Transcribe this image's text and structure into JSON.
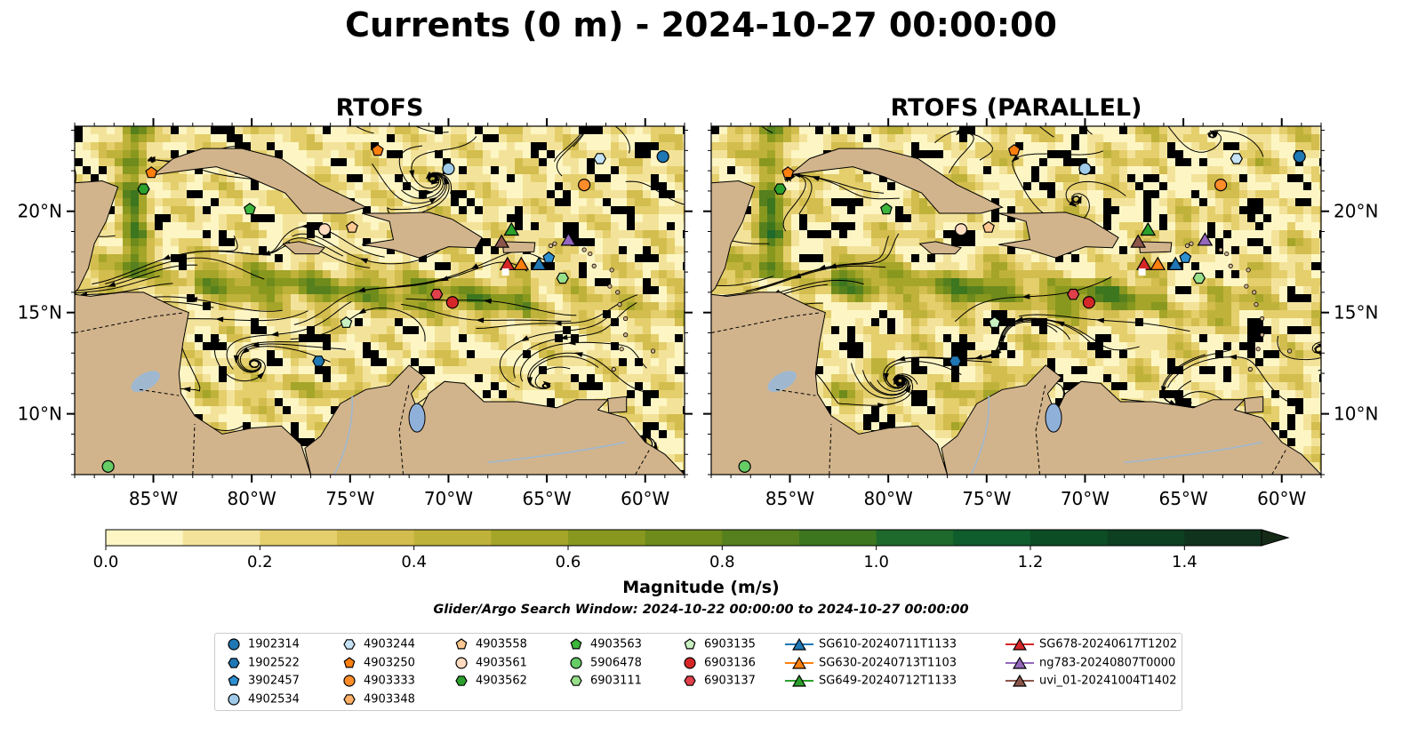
{
  "title": "Currents (0 m) - 2024-10-27 00:00:00",
  "panels": [
    {
      "title": "RTOFS"
    },
    {
      "title": "RTOFS (PARALLEL)"
    }
  ],
  "colors": {
    "land": "#d2b48c",
    "lake": "#8fb0d8",
    "river": "#9fb8d0",
    "streamline": "#000000"
  },
  "chart_data": {
    "type": "map",
    "lon_ticks": [
      "85°W",
      "80°W",
      "75°W",
      "70°W",
      "65°W",
      "60°W"
    ],
    "lat_ticks": [
      "20°N",
      "15°N",
      "10°N"
    ],
    "colorbar": {
      "label": "Magnitude (m/s)",
      "ticks": [
        "0.0",
        "0.2",
        "0.4",
        "0.6",
        "0.8",
        "1.0",
        "1.2",
        "1.4"
      ],
      "range": [
        0.0,
        1.5
      ],
      "extend": "max",
      "colors": [
        "#fdf6c4",
        "#f3e39a",
        "#e4cf6c",
        "#d3bd4e",
        "#bfb23a",
        "#a4a529",
        "#88981f",
        "#6e8b1c",
        "#55801d",
        "#3c761f",
        "#1e6a2c",
        "#0f5c2c",
        "#0c4d25",
        "#0d3f21",
        "#10331d",
        "#152a17"
      ]
    },
    "search_window": "Glider/Argo Search Window: 2024-10-22 00:00:00 to 2024-10-27 00:00:00",
    "legend": [
      {
        "name": "1902314",
        "marker": "circle",
        "color": "#1f77b4"
      },
      {
        "name": "1902522",
        "marker": "hexagon",
        "color": "#1f77b4"
      },
      {
        "name": "3902457",
        "marker": "pentagon",
        "color": "#2d8fd0"
      },
      {
        "name": "4902534",
        "marker": "circle",
        "color": "#9fcbe8"
      },
      {
        "name": "4903244",
        "marker": "hexagon",
        "color": "#c6e2f5"
      },
      {
        "name": "4903250",
        "marker": "pentagon",
        "color": "#ff7f0e"
      },
      {
        "name": "4903333",
        "marker": "circle",
        "color": "#ff8c2a"
      },
      {
        "name": "4903348",
        "marker": "hexagon",
        "color": "#ffb066"
      },
      {
        "name": "4903558",
        "marker": "pentagon",
        "color": "#ffc891"
      },
      {
        "name": "4903561",
        "marker": "circle",
        "color": "#ffdcc0"
      },
      {
        "name": "4903562",
        "marker": "hexagon",
        "color": "#2ca02c"
      },
      {
        "name": "4903563",
        "marker": "pentagon",
        "color": "#3cb63c"
      },
      {
        "name": "5906478",
        "marker": "circle",
        "color": "#66cc66"
      },
      {
        "name": "6903111",
        "marker": "hexagon",
        "color": "#98df8a"
      },
      {
        "name": "6903135",
        "marker": "pentagon",
        "color": "#c8f0c0"
      },
      {
        "name": "6903136",
        "marker": "circle",
        "color": "#d62728"
      },
      {
        "name": "6903137",
        "marker": "hexagon",
        "color": "#e0404a"
      },
      {
        "name": "SG610-20240711T1133",
        "marker": "triangle",
        "color": "#1f77b4"
      },
      {
        "name": "SG630-20240713T1103",
        "marker": "triangle",
        "color": "#ff7f0e"
      },
      {
        "name": "SG649-20240712T1133",
        "marker": "triangle",
        "color": "#2ca02c"
      },
      {
        "name": "SG678-20240617T1202",
        "marker": "triangle",
        "color": "#d62728"
      },
      {
        "name": "ng783-20240807T0000",
        "marker": "triangle",
        "color": "#9467bd"
      },
      {
        "name": "uvi_01-20241004T1402",
        "marker": "triangle",
        "color": "#8c564b"
      }
    ],
    "floats": [
      {
        "id": "4903250",
        "lon": -85.1,
        "lat": 21.9
      },
      {
        "id": "4903563",
        "lon": -80.1,
        "lat": 20.1
      },
      {
        "id": "4903562",
        "lon": -85.5,
        "lat": 21.1
      },
      {
        "id": "4903558",
        "lon": -74.9,
        "lat": 19.2
      },
      {
        "id": "4903561",
        "lon": -76.3,
        "lat": 19.1
      },
      {
        "id": "4903250",
        "lon": -73.6,
        "lat": 23.0
      },
      {
        "id": "4902534",
        "lon": -70.0,
        "lat": 22.1
      },
      {
        "id": "4903244",
        "lon": -62.3,
        "lat": 22.6
      },
      {
        "id": "1902314",
        "lon": -59.1,
        "lat": 22.7
      },
      {
        "id": "4903333",
        "lon": -63.1,
        "lat": 21.3
      },
      {
        "id": "6903137",
        "lon": -70.6,
        "lat": 15.9
      },
      {
        "id": "6903136",
        "lon": -69.8,
        "lat": 15.5
      },
      {
        "id": "6903111",
        "lon": -64.2,
        "lat": 16.7
      },
      {
        "id": "1902522",
        "lon": -76.6,
        "lat": 12.6
      },
      {
        "id": "5906478",
        "lon": -87.3,
        "lat": 7.4
      },
      {
        "id": "3902457",
        "lon": -64.9,
        "lat": 17.7
      }
    ],
    "floats_left_only": [
      {
        "id": "6903135",
        "lon": -75.2,
        "lat": 14.5
      }
    ],
    "floats_right_only": [
      {
        "id": "6903135",
        "lon": -74.6,
        "lat": 14.5
      }
    ],
    "gliders": [
      {
        "id": "SG649-20240712T1133",
        "lon": -66.8,
        "lat": 19.1
      },
      {
        "id": "uvi_01-20241004T1402",
        "lon": -67.3,
        "lat": 18.5
      },
      {
        "id": "ng783-20240807T0000",
        "lon": -63.9,
        "lat": 18.6
      },
      {
        "id": "SG678-20240617T1202",
        "lon": -67.0,
        "lat": 17.4
      },
      {
        "id": "SG630-20240713T1103",
        "lon": -66.3,
        "lat": 17.4
      },
      {
        "id": "SG610-20240711T1133",
        "lon": -65.4,
        "lat": 17.4
      }
    ],
    "extent": {
      "lon": [
        -89.0,
        -58.0
      ],
      "lat": [
        7.0,
        24.2
      ]
    }
  }
}
